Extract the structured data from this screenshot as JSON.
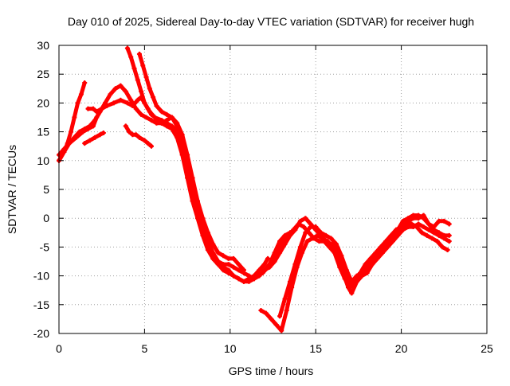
{
  "chart_data": {
    "type": "line",
    "title": "Day 010 of 2025, Sidereal Day-to-day VTEC variation (SDTVAR) for receiver hugh",
    "xlabel": "GPS time / hours",
    "ylabel": "SDTVAR / TECUs",
    "xlim": [
      0,
      25
    ],
    "ylim": [
      -20,
      30
    ],
    "xticks": [
      0,
      5,
      10,
      15,
      20,
      25
    ],
    "yticks": [
      -20,
      -15,
      -10,
      -5,
      0,
      5,
      10,
      15,
      20,
      25,
      30
    ],
    "grid": true,
    "line_color": "#ff0000",
    "series": [
      {
        "x": [
          0,
          0.3,
          0.6,
          1.0,
          1.4,
          1.7,
          2.0,
          2.2,
          2.5,
          2.8,
          3.2,
          3.6,
          4.0,
          4.3,
          4.6,
          4.8,
          5.0,
          5.3,
          5.6,
          6.0,
          6.3,
          6.6,
          6.9,
          7.2,
          7.5,
          7.8,
          8.1,
          8.4,
          8.7,
          9.0,
          9.3,
          9.6,
          9.9,
          10.2,
          10.5,
          10.8,
          11.1,
          11.4,
          11.7,
          12.0,
          12.2
        ],
        "y": [
          11,
          12,
          13,
          14,
          15,
          15.5,
          16,
          17.5,
          19,
          19.5,
          20,
          20.5,
          20,
          19.5,
          20.5,
          21,
          20,
          18.5,
          17.5,
          17,
          16.5,
          16,
          15,
          12,
          8,
          4,
          1,
          -2,
          -5,
          -7,
          -8,
          -8.5,
          -9,
          -10,
          -10.5,
          -11,
          -10.5,
          -10,
          -9,
          -8,
          -7
        ]
      },
      {
        "x": [
          0,
          0.3,
          0.6,
          0.9,
          1.2,
          1.5,
          1.8,
          2.1,
          2.4,
          2.7,
          3.0,
          3.3,
          3.6,
          3.9,
          4.2,
          4.5,
          4.8,
          5.1,
          5.4,
          5.7,
          6.0,
          6.3,
          6.6,
          6.9,
          7.2,
          7.5,
          7.8,
          8.1,
          8.4,
          8.7,
          9.0,
          9.3,
          9.6,
          9.9,
          10.2,
          10.5,
          10.8,
          11.1,
          11.4,
          11.7,
          12.0,
          12.3,
          12.6,
          12.9,
          13.2,
          13.5,
          13.8
        ],
        "y": [
          10,
          11.5,
          13,
          14,
          15,
          15.5,
          16,
          17,
          18.5,
          20,
          21.5,
          22.5,
          23,
          22,
          20.5,
          19,
          18,
          17.5,
          17,
          16.5,
          16.5,
          17,
          17.5,
          16,
          13,
          9,
          5,
          2,
          -1,
          -4,
          -6,
          -7.5,
          -8,
          -8,
          -8.5,
          -9,
          -9.5,
          -10,
          -10.5,
          -10,
          -9,
          -8,
          -6,
          -4,
          -3,
          -2.5,
          -2
        ]
      },
      {
        "x": [
          0,
          0.3,
          0.5,
          0.7,
          0.9,
          1.1,
          1.3,
          1.5
        ],
        "y": [
          10,
          11.5,
          13,
          15,
          17.5,
          20,
          21.5,
          23.5
        ]
      },
      {
        "x": [
          1.7,
          2.0,
          2.2,
          2.5
        ],
        "y": [
          19,
          19,
          18.5,
          19
        ]
      },
      {
        "x": [
          1.5,
          1.8,
          2.1,
          2.4,
          2.6
        ],
        "y": [
          13,
          13.5,
          14,
          14.5,
          14.8
        ]
      },
      {
        "x": [
          3.9,
          4.1,
          4.3,
          4.5,
          4.7,
          5.0,
          5.2,
          5.4
        ],
        "y": [
          16,
          15,
          14.5,
          14.5,
          14,
          13.5,
          13,
          12.5
        ]
      },
      {
        "x": [
          4.0,
          4.2,
          4.4,
          4.6,
          4.8,
          5.0,
          5.2,
          5.4,
          5.6,
          5.8,
          6.0,
          6.3,
          6.6,
          6.9,
          7.2,
          7.5,
          7.8,
          8.1,
          8.4,
          8.7,
          9.0,
          9.3,
          9.6,
          9.9,
          10.2,
          10.5,
          10.8,
          11.1,
          11.4
        ],
        "y": [
          29.5,
          28,
          26,
          24,
          22,
          20,
          19,
          18,
          17.5,
          17,
          16.5,
          16,
          15.5,
          14,
          11,
          7,
          3,
          0,
          -3,
          -5.5,
          -7,
          -8,
          -9,
          -9.5,
          -10,
          -10.5,
          -11,
          -11,
          -10.5
        ]
      },
      {
        "x": [
          4.7,
          4.9,
          5.1,
          5.3,
          5.5,
          5.7,
          6.0,
          6.3,
          6.6,
          6.9,
          7.2,
          7.5,
          7.8,
          8.1,
          8.4,
          8.7,
          9.0,
          9.3,
          9.6,
          9.9,
          10.2,
          10.5,
          10.8
        ],
        "y": [
          28.5,
          26.5,
          24.5,
          22.5,
          21,
          19.5,
          18.5,
          18,
          17.5,
          16.5,
          14.5,
          11,
          7,
          3,
          0,
          -2.5,
          -4.5,
          -6,
          -6.5,
          -7,
          -7,
          -8,
          -9
        ]
      },
      {
        "x": [
          11.8,
          12.1,
          12.4,
          12.7,
          13.0,
          13.3,
          13.6,
          13.9,
          14.2,
          14.5,
          14.8,
          15.1,
          15.4,
          15.7,
          16.0,
          16.3,
          16.6,
          16.9,
          17.1,
          17.4,
          17.7,
          18.0,
          18.3,
          18.6,
          18.9,
          19.2,
          19.5,
          19.8,
          20.1,
          20.4,
          20.7,
          21.0,
          21.3,
          21.6,
          21.9,
          22.2,
          22.5,
          22.8
        ],
        "y": [
          -16,
          -16.5,
          -17.5,
          -18.5,
          -19.5,
          -16,
          -12,
          -8.5,
          -6,
          -4,
          -3.5,
          -3,
          -3.5,
          -4,
          -5,
          -7,
          -9.5,
          -12,
          -13,
          -11,
          -10,
          -9.5,
          -8,
          -7,
          -6,
          -5,
          -4,
          -3,
          -2,
          -1.5,
          -1.5,
          -1,
          -1.5,
          -2,
          -2.5,
          -3,
          -3.5,
          -4
        ]
      },
      {
        "x": [
          12.9,
          13.2,
          13.5,
          13.8,
          14.1,
          14.4,
          14.7,
          15.0,
          15.3,
          15.6,
          15.9,
          16.2,
          16.5,
          16.8,
          17.1,
          17.4,
          17.7,
          18.0,
          18.3,
          18.6,
          18.9,
          19.2,
          19.5,
          19.8,
          20.1,
          20.4,
          20.7,
          21.0,
          21.3,
          21.6,
          21.9,
          22.2,
          22.5,
          22.8
        ],
        "y": [
          -17,
          -14,
          -11,
          -8,
          -5,
          -2.5,
          -1.5,
          -1.5,
          -2.5,
          -3,
          -3.5,
          -4.5,
          -6.5,
          -9,
          -11,
          -10,
          -9.5,
          -8.5,
          -7.5,
          -6.5,
          -5.5,
          -4.5,
          -3.5,
          -2.5,
          -1.5,
          -0.5,
          0,
          0,
          0.5,
          -1,
          -2,
          -2.5,
          -3,
          -3
        ]
      },
      {
        "x": [
          12.0,
          12.3,
          12.6,
          12.9,
          13.2,
          13.5,
          13.8,
          14.1,
          14.4,
          14.7,
          15.0,
          15.3,
          15.6,
          15.9,
          16.2,
          16.5,
          16.8,
          17.1,
          17.4,
          17.7,
          18.0,
          18.3,
          18.6,
          18.9,
          19.2,
          19.5,
          19.8,
          20.1,
          20.4,
          20.7,
          21.0,
          21.3,
          21.6,
          21.9,
          22.2,
          22.5,
          22.8
        ],
        "y": [
          -9,
          -8.5,
          -7.5,
          -6,
          -4.5,
          -3,
          -2,
          -0.5,
          0,
          -1,
          -2,
          -3,
          -4,
          -4.5,
          -5,
          -7.5,
          -10,
          -11.5,
          -10.5,
          -9.5,
          -9,
          -8,
          -7,
          -6,
          -5,
          -3.5,
          -2,
          -0.5,
          0,
          0.5,
          0.5,
          0,
          -1,
          -1.5,
          -0.5,
          -0.5,
          -1
        ]
      },
      {
        "x": [
          11.6,
          11.9,
          12.2,
          12.5,
          12.8,
          13.1,
          13.4,
          13.7,
          14.0,
          14.3,
          14.6,
          14.9,
          15.2,
          15.5,
          15.8,
          16.1,
          16.4,
          16.7,
          17.0,
          17.3,
          17.6,
          17.9,
          18.2,
          18.5,
          18.8,
          19.1,
          19.4,
          19.7,
          20.0,
          20.3,
          20.6,
          20.9,
          21.2,
          21.5,
          21.8,
          22.1,
          22.4,
          22.7
        ],
        "y": [
          -10,
          -9.5,
          -8.5,
          -7,
          -5.5,
          -4,
          -3,
          -2,
          -1,
          -1.5,
          -2.5,
          -3.5,
          -4,
          -4,
          -5,
          -6,
          -8.5,
          -10.5,
          -12,
          -10.5,
          -9.5,
          -8,
          -7,
          -6,
          -5,
          -4,
          -3,
          -2,
          -1.5,
          -1,
          -1,
          -1.5,
          -2.5,
          -3,
          -3.5,
          -4,
          -5,
          -5.5
        ]
      }
    ]
  }
}
